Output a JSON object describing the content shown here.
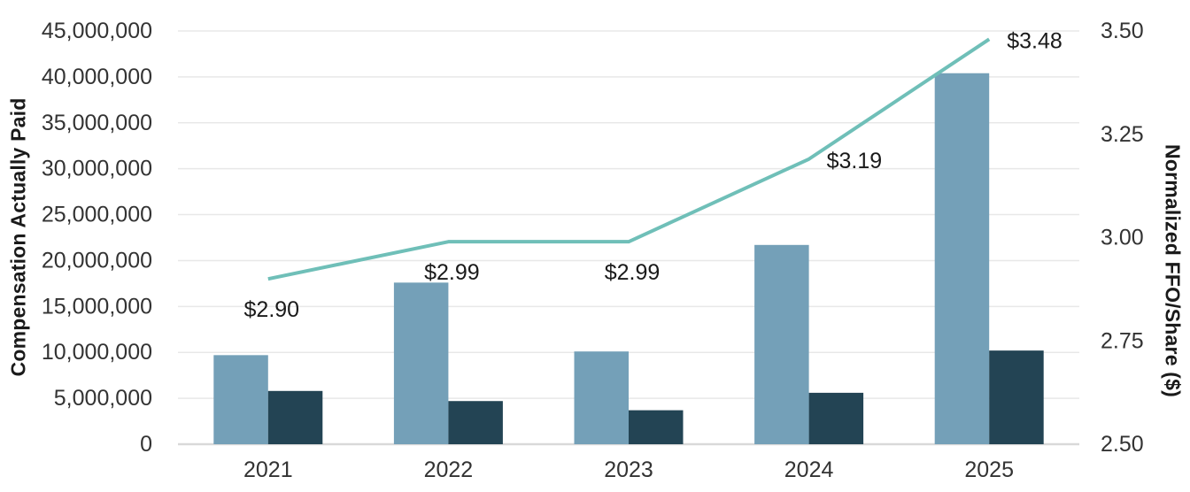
{
  "chart_data": {
    "type": "bar",
    "title": "",
    "categories": [
      "2021",
      "2022",
      "2023",
      "2024",
      "2025"
    ],
    "series": [
      {
        "id": "cap-light-blue-bars",
        "type": "bar",
        "axis": "left",
        "color": "#74A0B8",
        "values": [
          9700000,
          17600000,
          10100000,
          21700000,
          40400000
        ]
      },
      {
        "id": "cap-dark-navy-bars",
        "type": "bar",
        "axis": "left",
        "color": "#234454",
        "values": [
          5800000,
          4700000,
          3700000,
          5600000,
          10200000
        ]
      },
      {
        "id": "normalized-ffo-line",
        "type": "line",
        "axis": "right",
        "color": "#6FBFB8",
        "values": [
          2.9,
          2.99,
          2.99,
          3.19,
          3.48
        ],
        "data_labels": [
          "$2.90",
          "$2.99",
          "$2.99",
          "$3.19",
          "$3.48"
        ],
        "label_positions": [
          "below",
          "below",
          "below",
          "right",
          "right"
        ]
      }
    ],
    "left_axis": {
      "title": "Compensation Actually Paid",
      "min": 0,
      "max": 45000000,
      "step": 5000000,
      "tick_labels": [
        "0",
        "5,000,000",
        "10,000,000",
        "15,000,000",
        "20,000,000",
        "25,000,000",
        "30,000,000",
        "35,000,000",
        "40,000,000",
        "45,000,000"
      ]
    },
    "right_axis": {
      "title": "Normalized FFO/Share ($)",
      "min": 2.5,
      "max": 3.5,
      "step": 0.25,
      "tick_labels": [
        "2.50",
        "2.75",
        "3.00",
        "3.25",
        "3.50"
      ]
    },
    "grid": true,
    "legend": false,
    "colors": {
      "gridline": "#E8E8E8",
      "baseline": "#D9D9D9",
      "tick_text": "#333333",
      "label_text": "#1a1a1a"
    }
  }
}
